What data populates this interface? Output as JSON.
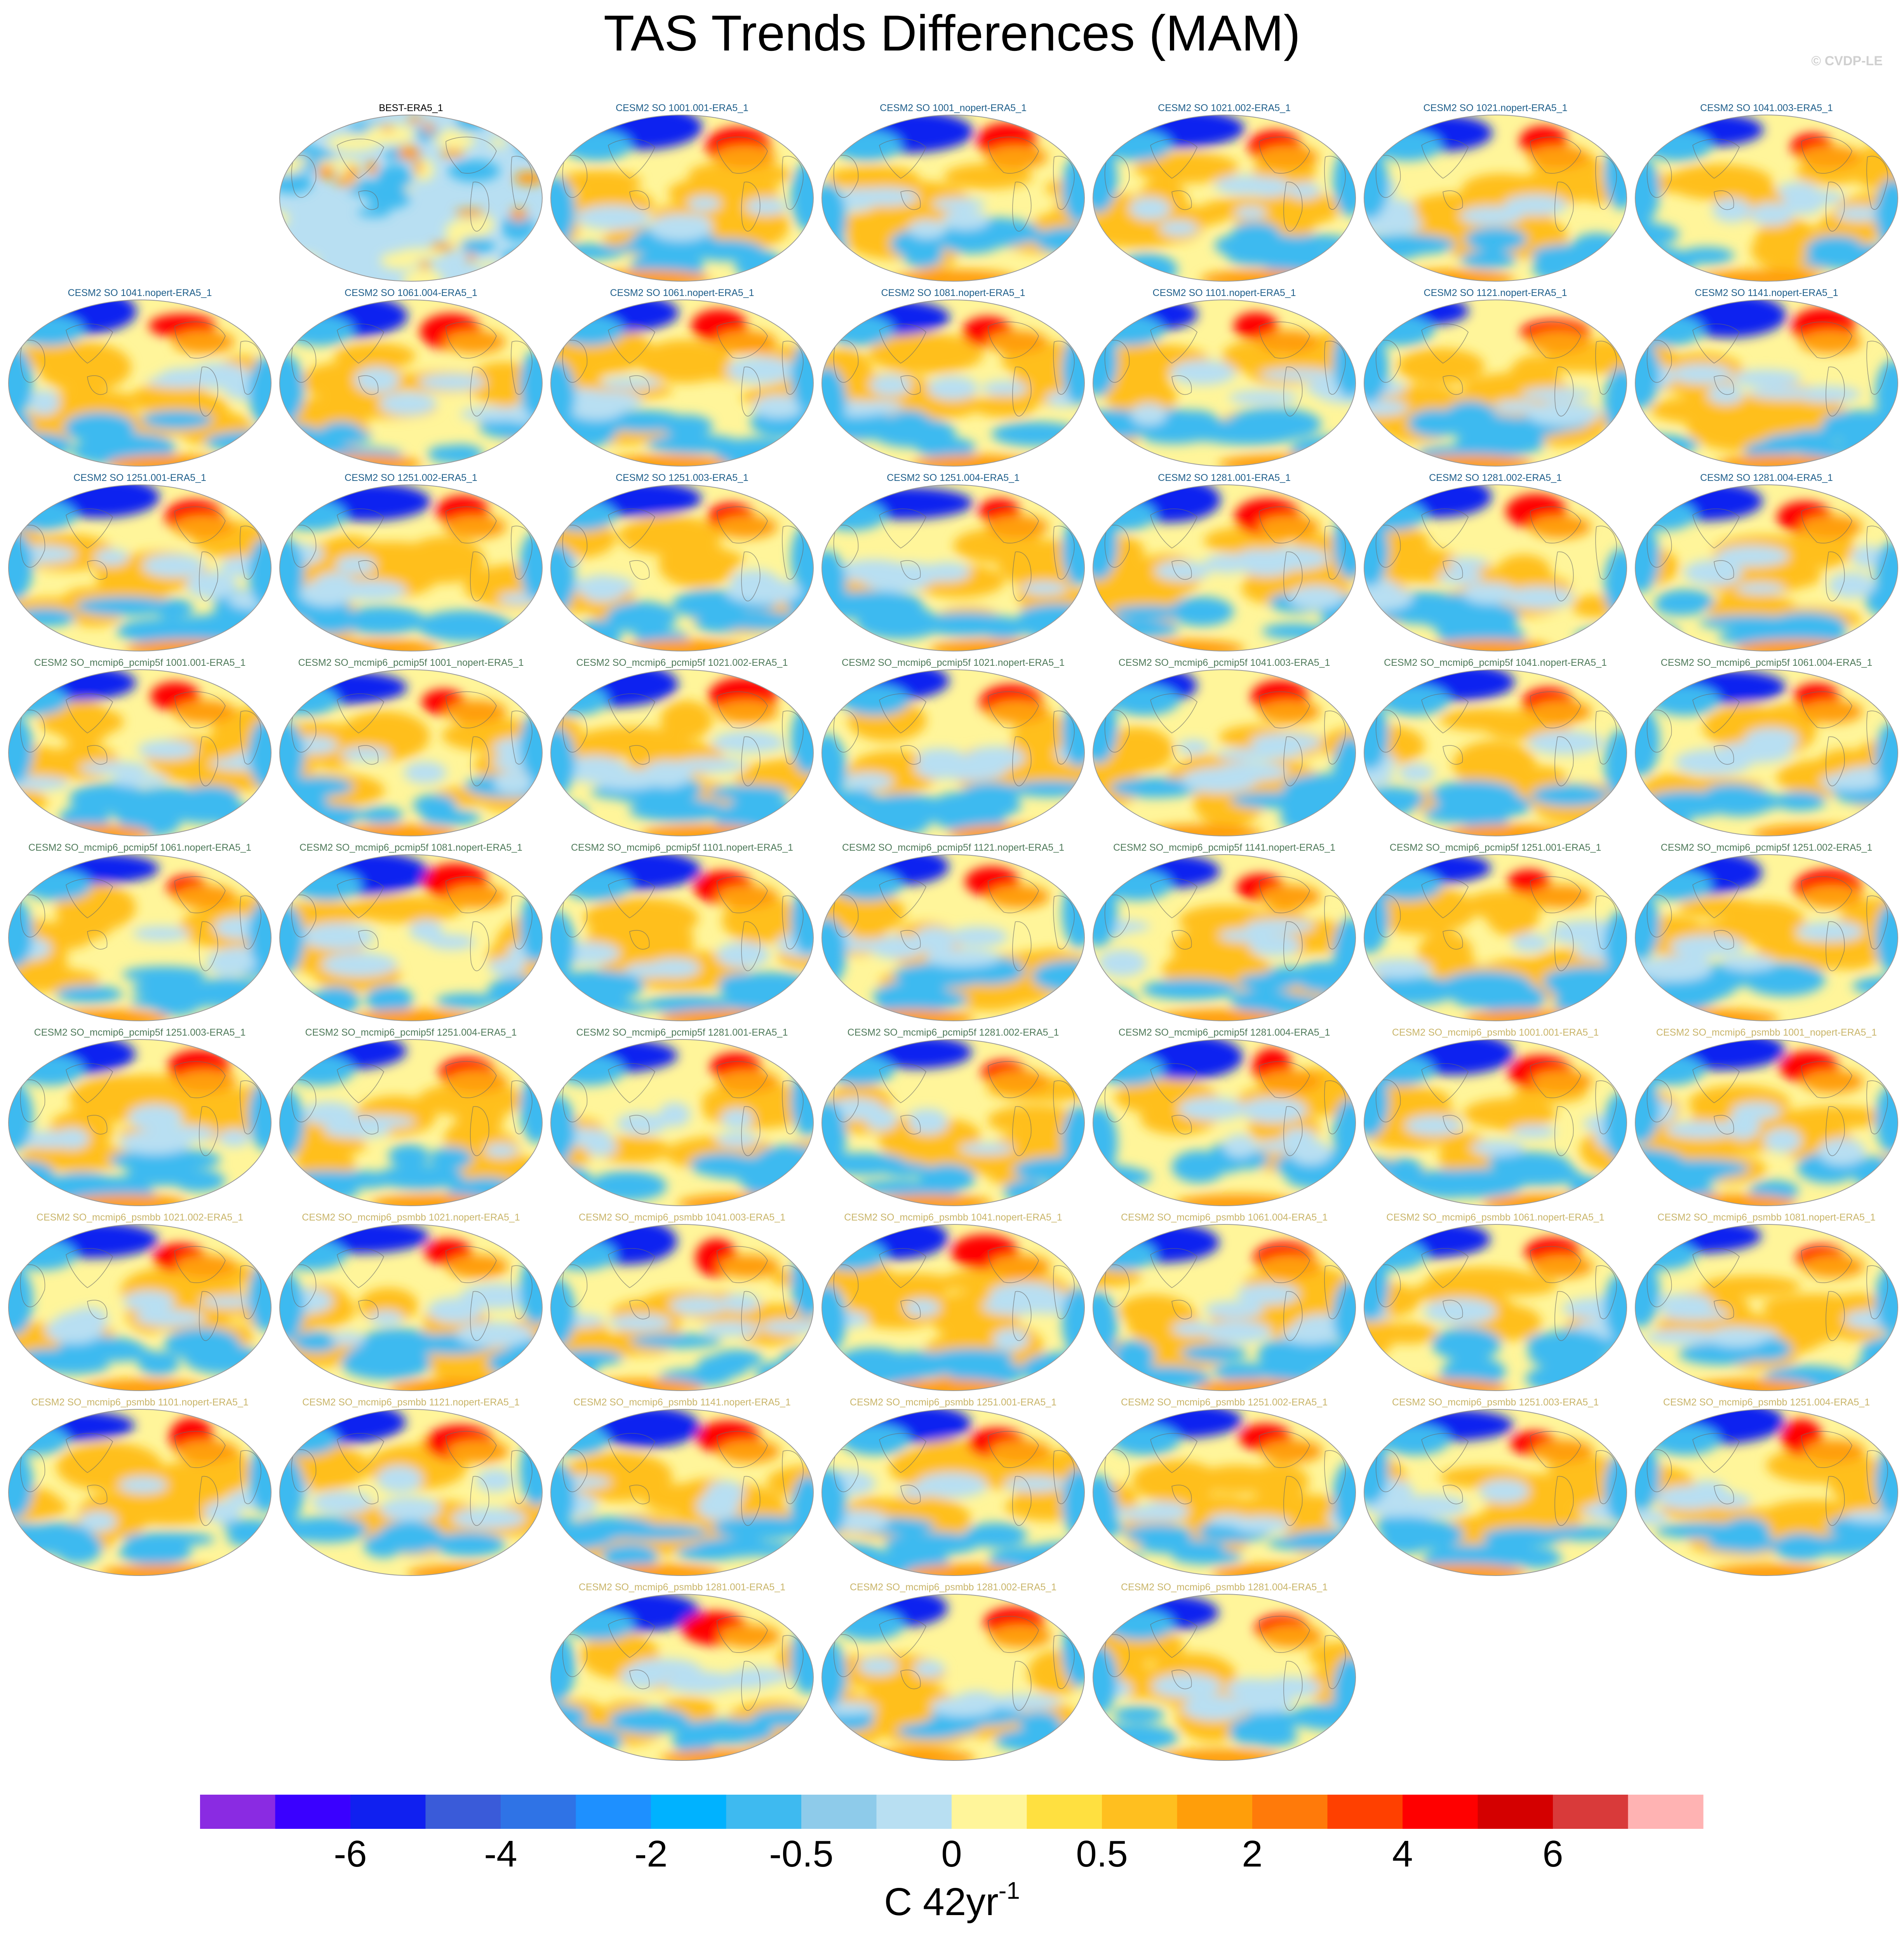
{
  "title": "TAS Trends Differences (MAM)",
  "credit": "© CVDP-LE",
  "panels": [
    {
      "label": "BEST-ERA5_1",
      "group": "obs"
    },
    {
      "label": "CESM2 SO 1001.001-ERA5_1",
      "group": "so"
    },
    {
      "label": "CESM2 SO 1001_nopert-ERA5_1",
      "group": "so"
    },
    {
      "label": "CESM2 SO 1021.002-ERA5_1",
      "group": "so"
    },
    {
      "label": "CESM2 SO 1021.nopert-ERA5_1",
      "group": "so"
    },
    {
      "label": "CESM2 SO 1041.003-ERA5_1",
      "group": "so"
    },
    {
      "label": "CESM2 SO 1041.nopert-ERA5_1",
      "group": "so"
    },
    {
      "label": "CESM2 SO 1061.004-ERA5_1",
      "group": "so"
    },
    {
      "label": "CESM2 SO 1061.nopert-ERA5_1",
      "group": "so"
    },
    {
      "label": "CESM2 SO 1081.nopert-ERA5_1",
      "group": "so"
    },
    {
      "label": "CESM2 SO 1101.nopert-ERA5_1",
      "group": "so"
    },
    {
      "label": "CESM2 SO 1121.nopert-ERA5_1",
      "group": "so"
    },
    {
      "label": "CESM2 SO 1141.nopert-ERA5_1",
      "group": "so"
    },
    {
      "label": "CESM2 SO 1251.001-ERA5_1",
      "group": "so"
    },
    {
      "label": "CESM2 SO 1251.002-ERA5_1",
      "group": "so"
    },
    {
      "label": "CESM2 SO 1251.003-ERA5_1",
      "group": "so"
    },
    {
      "label": "CESM2 SO 1251.004-ERA5_1",
      "group": "so"
    },
    {
      "label": "CESM2 SO 1281.001-ERA5_1",
      "group": "so"
    },
    {
      "label": "CESM2 SO 1281.002-ERA5_1",
      "group": "so"
    },
    {
      "label": "CESM2 SO 1281.004-ERA5_1",
      "group": "so"
    },
    {
      "label": "CESM2 SO_mcmip6_pcmip5f 1001.001-ERA5_1",
      "group": "pcmip5f"
    },
    {
      "label": "CESM2 SO_mcmip6_pcmip5f 1001_nopert-ERA5_1",
      "group": "pcmip5f"
    },
    {
      "label": "CESM2 SO_mcmip6_pcmip5f 1021.002-ERA5_1",
      "group": "pcmip5f"
    },
    {
      "label": "CESM2 SO_mcmip6_pcmip5f 1021.nopert-ERA5_1",
      "group": "pcmip5f"
    },
    {
      "label": "CESM2 SO_mcmip6_pcmip5f 1041.003-ERA5_1",
      "group": "pcmip5f"
    },
    {
      "label": "CESM2 SO_mcmip6_pcmip5f 1041.nopert-ERA5_1",
      "group": "pcmip5f"
    },
    {
      "label": "CESM2 SO_mcmip6_pcmip5f 1061.004-ERA5_1",
      "group": "pcmip5f"
    },
    {
      "label": "CESM2 SO_mcmip6_pcmip5f 1061.nopert-ERA5_1",
      "group": "pcmip5f"
    },
    {
      "label": "CESM2 SO_mcmip6_pcmip5f 1081.nopert-ERA5_1",
      "group": "pcmip5f"
    },
    {
      "label": "CESM2 SO_mcmip6_pcmip5f 1101.nopert-ERA5_1",
      "group": "pcmip5f"
    },
    {
      "label": "CESM2 SO_mcmip6_pcmip5f 1121.nopert-ERA5_1",
      "group": "pcmip5f"
    },
    {
      "label": "CESM2 SO_mcmip6_pcmip5f 1141.nopert-ERA5_1",
      "group": "pcmip5f"
    },
    {
      "label": "CESM2 SO_mcmip6_pcmip5f 1251.001-ERA5_1",
      "group": "pcmip5f"
    },
    {
      "label": "CESM2 SO_mcmip6_pcmip5f 1251.002-ERA5_1",
      "group": "pcmip5f"
    },
    {
      "label": "CESM2 SO_mcmip6_pcmip5f 1251.003-ERA5_1",
      "group": "pcmip5f"
    },
    {
      "label": "CESM2 SO_mcmip6_pcmip5f 1251.004-ERA5_1",
      "group": "pcmip5f"
    },
    {
      "label": "CESM2 SO_mcmip6_pcmip5f 1281.001-ERA5_1",
      "group": "pcmip5f"
    },
    {
      "label": "CESM2 SO_mcmip6_pcmip5f 1281.002-ERA5_1",
      "group": "pcmip5f"
    },
    {
      "label": "CESM2 SO_mcmip6_pcmip5f 1281.004-ERA5_1",
      "group": "pcmip5f"
    },
    {
      "label": "CESM2 SO_mcmip6_psmbb 1001.001-ERA5_1",
      "group": "psmbb"
    },
    {
      "label": "CESM2 SO_mcmip6_psmbb 1001_nopert-ERA5_1",
      "group": "psmbb"
    },
    {
      "label": "CESM2 SO_mcmip6_psmbb 1021.002-ERA5_1",
      "group": "psmbb"
    },
    {
      "label": "CESM2 SO_mcmip6_psmbb 1021.nopert-ERA5_1",
      "group": "psmbb"
    },
    {
      "label": "CESM2 SO_mcmip6_psmbb 1041.003-ERA5_1",
      "group": "psmbb"
    },
    {
      "label": "CESM2 SO_mcmip6_psmbb 1041.nopert-ERA5_1",
      "group": "psmbb"
    },
    {
      "label": "CESM2 SO_mcmip6_psmbb 1061.004-ERA5_1",
      "group": "psmbb"
    },
    {
      "label": "CESM2 SO_mcmip6_psmbb 1061.nopert-ERA5_1",
      "group": "psmbb"
    },
    {
      "label": "CESM2 SO_mcmip6_psmbb 1081.nopert-ERA5_1",
      "group": "psmbb"
    },
    {
      "label": "CESM2 SO_mcmip6_psmbb 1101.nopert-ERA5_1",
      "group": "psmbb"
    },
    {
      "label": "CESM2 SO_mcmip6_psmbb 1121.nopert-ERA5_1",
      "group": "psmbb"
    },
    {
      "label": "CESM2 SO_mcmip6_psmbb 1141.nopert-ERA5_1",
      "group": "psmbb"
    },
    {
      "label": "CESM2 SO_mcmip6_psmbb 1251.001-ERA5_1",
      "group": "psmbb"
    },
    {
      "label": "CESM2 SO_mcmip6_psmbb 1251.002-ERA5_1",
      "group": "psmbb"
    },
    {
      "label": "CESM2 SO_mcmip6_psmbb 1251.003-ERA5_1",
      "group": "psmbb"
    },
    {
      "label": "CESM2 SO_mcmip6_psmbb 1251.004-ERA5_1",
      "group": "psmbb"
    },
    {
      "label": "CESM2 SO_mcmip6_psmbb 1281.001-ERA5_1",
      "group": "psmbb"
    },
    {
      "label": "CESM2 SO_mcmip6_psmbb 1281.002-ERA5_1",
      "group": "psmbb"
    },
    {
      "label": "CESM2 SO_mcmip6_psmbb 1281.004-ERA5_1",
      "group": "psmbb"
    }
  ],
  "group_colors": {
    "obs": "#000000",
    "so": "#1f5f8b",
    "pcmip5f": "#4f7a5a",
    "psmbb": "#c9b56a"
  },
  "colorbar": {
    "colors": [
      "#8a2be2",
      "#3a00ff",
      "#1020f0",
      "#3a5bd9",
      "#2f73e6",
      "#1e90ff",
      "#00b2ff",
      "#3ebaf0",
      "#8ecbea",
      "#b8dff2",
      "#fff59a",
      "#ffe040",
      "#ffbf1f",
      "#ff9e0a",
      "#ff7a0a",
      "#ff4000",
      "#ff0000",
      "#d40000",
      "#d93a3a",
      "#ffb3b3"
    ],
    "tick_labels": [
      "-6",
      "-4",
      "-2",
      "-0.5",
      "0",
      "0.5",
      "2",
      "4",
      "6"
    ],
    "label": "C 42yr",
    "label_superscript": "-1"
  },
  "palette": {
    "ocean_blue": "#b8dff2",
    "cool_blue": "#3ebaf0",
    "deep_blue": "#1020f0",
    "yellow": "#fff59a",
    "gold": "#ffbf1f",
    "orange": "#ff9e0a",
    "red": "#ff0000",
    "coast": "#6a6a6a"
  }
}
